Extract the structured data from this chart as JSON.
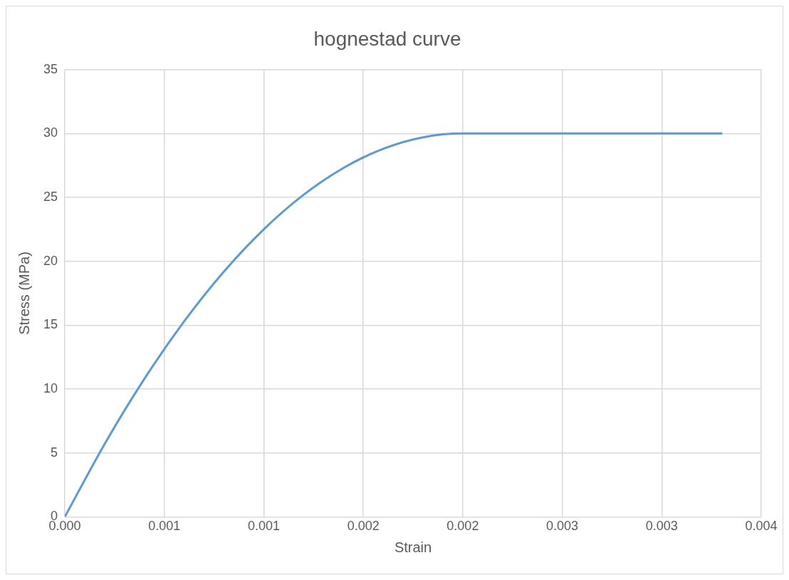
{
  "chart_data": {
    "type": "line",
    "title": "hognestad curve",
    "xlabel": "Strain",
    "ylabel": "Stress (MPa)",
    "x": [
      0,
      0.0002,
      0.0004,
      0.0006,
      0.0008,
      0.001,
      0.0012,
      0.0014,
      0.0016,
      0.0018,
      0.002,
      0.0033
    ],
    "series": [
      {
        "color": "#5b9bd5",
        "values": [
          0,
          5.7,
          10.8,
          15.3,
          19.2,
          22.5,
          25.2,
          27.3,
          28.8,
          29.7,
          30,
          30
        ]
      }
    ],
    "xlim": [
      0,
      0.0035
    ],
    "xticks": [
      {
        "value": 0,
        "label": "0.000"
      },
      {
        "value": 0.0005,
        "label": "0.001"
      },
      {
        "value": 0.001,
        "label": "0.001"
      },
      {
        "value": 0.0015,
        "label": "0.002"
      },
      {
        "value": 0.002,
        "label": "0.002"
      },
      {
        "value": 0.0025,
        "label": "0.003"
      },
      {
        "value": 0.003,
        "label": "0.003"
      },
      {
        "value": 0.0035,
        "label": "0.004"
      }
    ],
    "ylim": [
      0,
      35
    ],
    "yticks": [
      0,
      5,
      10,
      15,
      20,
      25,
      30,
      35
    ],
    "grid": true,
    "marker": "none",
    "line_style": "solid",
    "legend": false
  }
}
